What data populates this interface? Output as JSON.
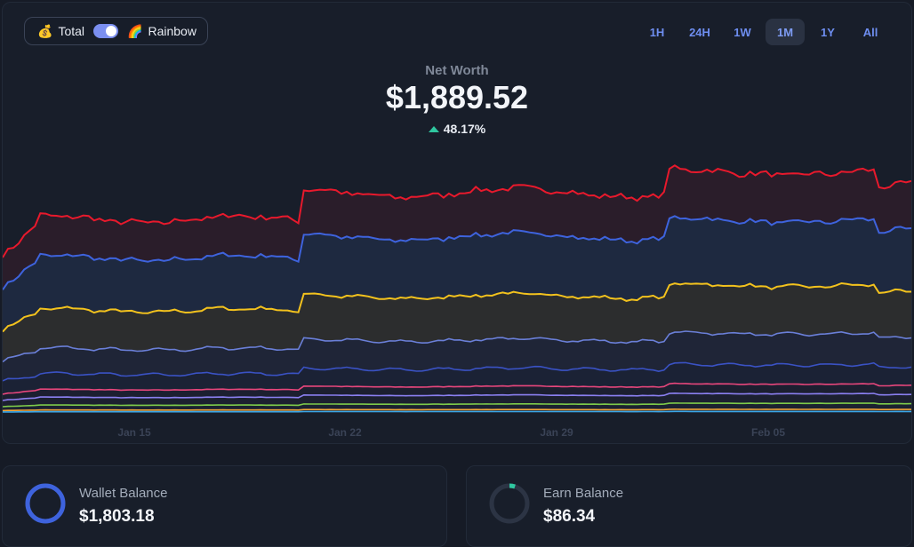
{
  "toggle": {
    "left_emoji": "💰",
    "left_label": "Total",
    "right_emoji": "🌈",
    "right_label": "Rainbow",
    "enabled": true
  },
  "ranges": [
    {
      "label": "1H",
      "active": false
    },
    {
      "label": "24H",
      "active": false
    },
    {
      "label": "1W",
      "active": false
    },
    {
      "label": "1M",
      "active": true
    },
    {
      "label": "1Y",
      "active": false
    },
    {
      "label": "All",
      "active": false
    }
  ],
  "net_worth": {
    "label": "Net Worth",
    "value": "$1,889.52",
    "change": "48.17%",
    "direction": "up"
  },
  "chart_data": {
    "type": "area",
    "x_ticks": [
      "Jan 15",
      "Jan 22",
      "Jan 29",
      "Feb 05"
    ],
    "series_colors": [
      "#e8192c",
      "#3e63dd",
      "#f3c21d",
      "#6a7fd8",
      "#3a52c4",
      "#e8467c",
      "#8a7ff0",
      "#7ecb4a",
      "#f2a63a",
      "#3aa6e8"
    ]
  },
  "wallet": {
    "label": "Wallet Balance",
    "value": "$1,803.18",
    "ring_fraction": 1.0,
    "ring_color": "#3e63dd"
  },
  "earn": {
    "label": "Earn Balance",
    "value": "$86.34",
    "ring_fraction": 0.05,
    "ring_color": "#2fc7a0"
  }
}
